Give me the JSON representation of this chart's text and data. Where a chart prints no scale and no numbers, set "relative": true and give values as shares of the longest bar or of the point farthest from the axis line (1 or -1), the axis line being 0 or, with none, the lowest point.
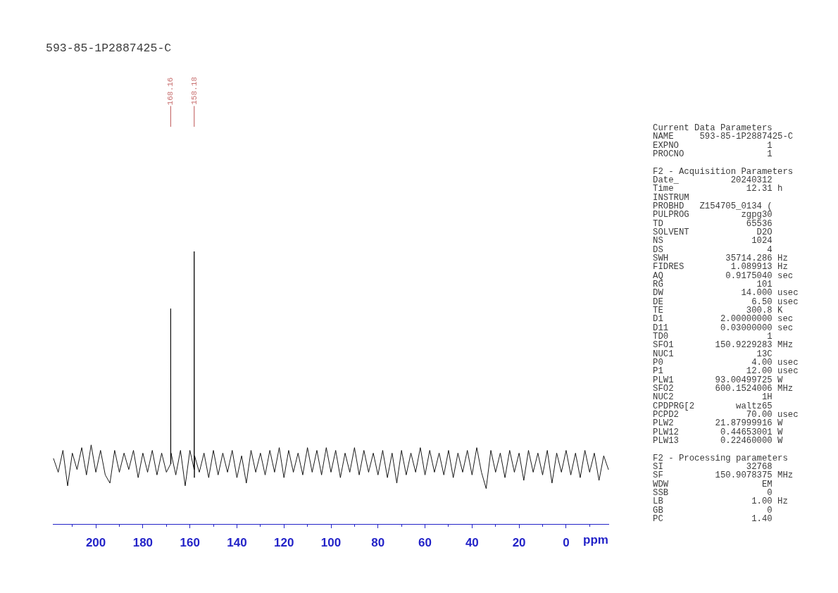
{
  "chart_data": [
    {
      "type": "line",
      "title": "593-85-1P2887425-C",
      "xlabel": "ppm",
      "relative": true,
      "color": "#000000",
      "xlim": [
        218.3,
        -18.3
      ],
      "xticks": [
        {
          "value": 210,
          "label": null
        },
        200,
        {
          "value": 190,
          "label": null
        },
        180,
        {
          "value": 170,
          "label": null
        },
        160,
        {
          "value": 150,
          "label": null
        },
        140,
        {
          "value": 130,
          "label": null
        },
        120,
        {
          "value": 110,
          "label": null
        },
        100,
        {
          "value": 90,
          "label": null
        },
        80,
        {
          "value": 70,
          "label": null
        },
        60,
        {
          "value": 50,
          "label": null
        },
        40,
        {
          "value": 30,
          "label": null
        },
        20,
        {
          "value": 10,
          "label": null
        },
        0,
        {
          "value": -10,
          "label": null
        }
      ],
      "x": [
        218,
        216,
        214,
        212,
        210,
        208,
        206,
        204,
        202,
        200,
        198,
        196,
        194,
        192,
        190,
        188,
        186,
        184,
        182,
        180,
        178,
        176,
        174,
        172,
        170,
        168.2,
        168.16,
        168.1,
        168,
        166,
        164,
        162,
        160,
        158.2,
        158.18,
        158.1,
        158,
        156,
        154,
        152,
        150,
        148,
        146,
        144,
        142,
        140,
        138,
        136,
        134,
        132,
        130,
        128,
        126,
        124,
        122,
        120,
        118,
        116,
        114,
        112,
        110,
        108,
        106,
        104,
        102,
        100,
        98,
        96,
        94,
        92,
        90,
        88,
        86,
        84,
        82,
        80,
        78,
        76,
        74,
        72,
        70,
        68,
        66,
        64,
        62,
        60,
        58,
        56,
        54,
        52,
        50,
        48,
        46,
        44,
        42,
        40,
        38,
        36,
        34,
        32,
        30,
        28,
        26,
        24,
        22,
        20,
        18,
        16,
        14,
        12,
        10,
        8,
        6,
        4,
        2,
        0,
        -2,
        -4,
        -6,
        -8,
        -10,
        -12,
        -14,
        -16,
        -18
      ],
      "values": [
        0.24,
        0.19,
        0.27,
        0.14,
        0.26,
        0.2,
        0.28,
        0.18,
        0.29,
        0.19,
        0.27,
        0.18,
        0.15,
        0.27,
        0.19,
        0.26,
        0.2,
        0.27,
        0.17,
        0.26,
        0.19,
        0.27,
        0.18,
        0.26,
        0.19,
        0.22,
        0.79,
        0.22,
        0.26,
        0.18,
        0.27,
        0.14,
        0.27,
        0.2,
        1,
        0.17,
        0.25,
        0.19,
        0.26,
        0.17,
        0.27,
        0.18,
        0.26,
        0.19,
        0.27,
        0.17,
        0.25,
        0.15,
        0.27,
        0.19,
        0.26,
        0.18,
        0.27,
        0.19,
        0.28,
        0.17,
        0.27,
        0.19,
        0.26,
        0.18,
        0.28,
        0.19,
        0.27,
        0.18,
        0.28,
        0.19,
        0.27,
        0.17,
        0.26,
        0.19,
        0.28,
        0.18,
        0.27,
        0.19,
        0.26,
        0.18,
        0.27,
        0.17,
        0.26,
        0.15,
        0.27,
        0.18,
        0.26,
        0.19,
        0.28,
        0.18,
        0.27,
        0.19,
        0.26,
        0.18,
        0.27,
        0.17,
        0.26,
        0.19,
        0.27,
        0.18,
        0.28,
        0.19,
        0.13,
        0.27,
        0.19,
        0.26,
        0.17,
        0.27,
        0.19,
        0.26,
        0.16,
        0.27,
        0.19,
        0.26,
        0.18,
        0.27,
        0.15,
        0.26,
        0.19,
        0.27,
        0.18,
        0.26,
        0.17,
        0.27,
        0.19,
        0.26,
        0.16,
        0.25,
        0.2
      ],
      "annotations": [
        {
          "text": "168.16",
          "x": 168.16
        },
        {
          "text": "158.18",
          "x": 158.18
        }
      ]
    },
    {
      "type": "other",
      "title": "Current Data Parameters",
      "annotations": [
        "NAME 593-85-1P2887425-C",
        "EXPNO 1",
        "PROCNO 1"
      ]
    },
    {
      "type": "other",
      "title": "F2 - Acquisition Parameters",
      "annotations": [
        "Date_ 20240312",
        "Time 12.31 h",
        "INSTRUM",
        "PROBHD Z154705_0134 (",
        "PULPROG zgpg30",
        "TD 65536",
        "SOLVENT D2O",
        "NS 1024",
        "DS 4",
        "SWH 35714.286 Hz",
        "FIDRES 1.089913 Hz",
        "AQ 0.9175040 sec",
        "RG 101",
        "DW 14.000 usec",
        "DE 6.50 usec",
        "TE 300.8 K",
        "D1 2.00000000 sec",
        "D11 0.03000000 sec",
        "TD0 1",
        "SFO1 150.9229283 MHz",
        "NUC1 13C",
        "P0 4.00 usec",
        "P1 12.00 usec",
        "PLW1 93.00499725 W",
        "SFO2 600.1524006 MHz",
        "NUC2 1H",
        "CPDPRG[2 waltz65",
        "PCPD2 70.00 usec",
        "PLW2 21.87999916 W",
        "PLW12 0.44653001 W",
        "PLW13 0.22460000 W"
      ]
    },
    {
      "type": "other",
      "title": "F2 - Processing parameters",
      "annotations": [
        "SI 32768",
        "SF 150.9078375 MHz",
        "WDW EM",
        "SSB 0",
        "LB 1.00 Hz",
        "GB 0",
        "PC 1.40"
      ]
    }
  ]
}
